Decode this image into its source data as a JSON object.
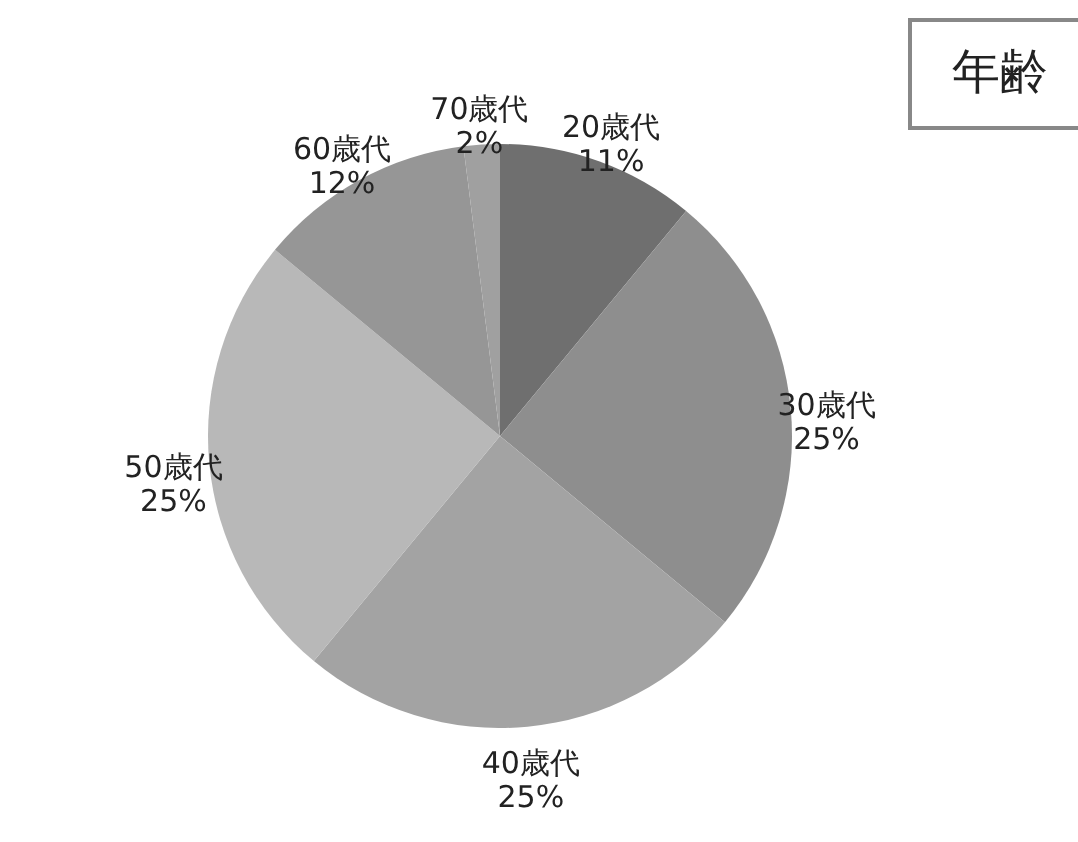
{
  "chart_data": {
    "type": "pie",
    "title": "年齢",
    "categories": [
      "20歳代",
      "30歳代",
      "40歳代",
      "50歳代",
      "60歳代",
      "70歳代"
    ],
    "values": [
      11,
      25,
      25,
      25,
      12,
      2
    ],
    "value_labels": [
      "11%",
      "25%",
      "25%",
      "25%",
      "12%",
      "2%"
    ],
    "colors": [
      "#6f6f6f",
      "#8e8e8e",
      "#a3a3a3",
      "#b8b8b8",
      "#969696",
      "#a0a0a0"
    ]
  }
}
